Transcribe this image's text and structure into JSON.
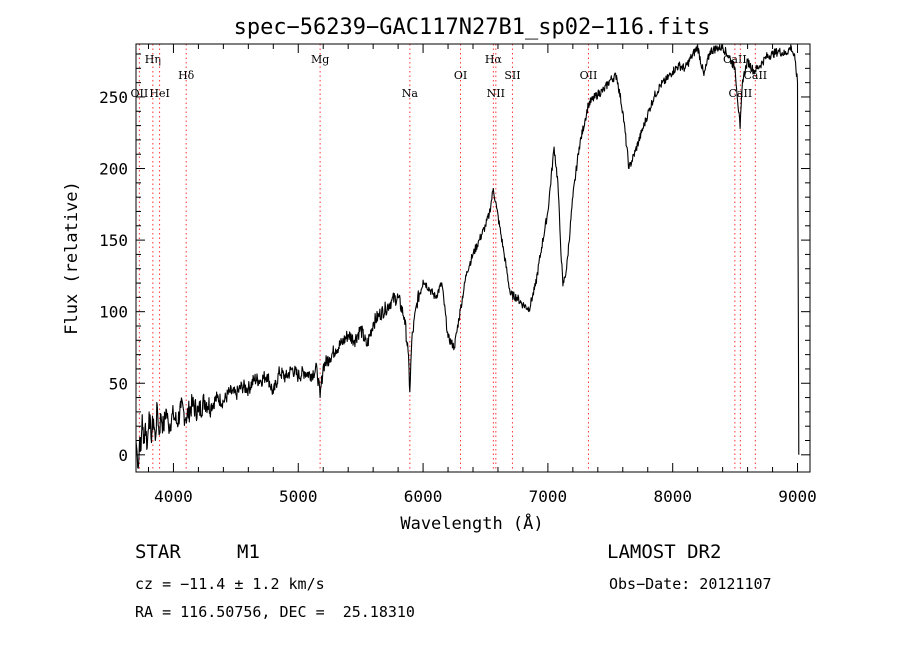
{
  "chart_data": {
    "type": "line",
    "title": "spec−56239−GAC117N27B1_sp02−116.fits",
    "xlabel": "Wavelength (Å)",
    "ylabel": "Flux (relative)",
    "xlim": [
      3700,
      9100
    ],
    "ylim": [
      -12,
      287
    ],
    "x_ticks": [
      4000,
      5000,
      6000,
      7000,
      8000,
      9000
    ],
    "y_ticks": [
      0,
      50,
      100,
      150,
      200,
      250
    ],
    "grid": false,
    "legend": "none",
    "line_color": "#000000",
    "marker_color": "#ff3333",
    "spectral_lines": [
      {
        "label": "Hη",
        "wavelength": 3835,
        "row": 1
      },
      {
        "label": "OII",
        "wavelength": 3727,
        "row": 3
      },
      {
        "label": "HeI",
        "wavelength": 3889,
        "row": 3
      },
      {
        "label": "Hδ",
        "wavelength": 4102,
        "row": 2
      },
      {
        "label": "Mg",
        "wavelength": 5175,
        "row": 1
      },
      {
        "label": "Na",
        "wavelength": 5894,
        "row": 3
      },
      {
        "label": "OI",
        "wavelength": 6300,
        "row": 2
      },
      {
        "label": "Hα",
        "wavelength": 6563,
        "row": 1
      },
      {
        "label": "NII",
        "wavelength": 6583,
        "row": 3
      },
      {
        "label": "SII",
        "wavelength": 6716,
        "row": 2
      },
      {
        "label": "OII",
        "wavelength": 7325,
        "row": 2
      },
      {
        "label": "CaII",
        "wavelength": 8498,
        "row": 1
      },
      {
        "label": "CaII",
        "wavelength": 8542,
        "row": 3
      },
      {
        "label": "CaII",
        "wavelength": 8662,
        "row": 2
      }
    ],
    "series": [
      {
        "values": [
          [
            3700,
            10
          ],
          [
            3710,
            0
          ],
          [
            3720,
            -8
          ],
          [
            3730,
            12
          ],
          [
            3740,
            3
          ],
          [
            3750,
            28
          ],
          [
            3760,
            8
          ],
          [
            3775,
            22
          ],
          [
            3790,
            5
          ],
          [
            3805,
            30
          ],
          [
            3820,
            12
          ],
          [
            3840,
            25
          ],
          [
            3855,
            10
          ],
          [
            3870,
            35
          ],
          [
            3885,
            14
          ],
          [
            3900,
            28
          ],
          [
            3920,
            18
          ],
          [
            3940,
            32
          ],
          [
            3960,
            20
          ],
          [
            4000,
            28
          ],
          [
            4030,
            22
          ],
          [
            4060,
            33
          ],
          [
            4100,
            26
          ],
          [
            4150,
            35
          ],
          [
            4200,
            30
          ],
          [
            4250,
            38
          ],
          [
            4300,
            34
          ],
          [
            4350,
            40
          ],
          [
            4400,
            37
          ],
          [
            4450,
            44
          ],
          [
            4500,
            42
          ],
          [
            4550,
            48
          ],
          [
            4600,
            46
          ],
          [
            4650,
            53
          ],
          [
            4700,
            52
          ],
          [
            4750,
            56
          ],
          [
            4800,
            43
          ],
          [
            4850,
            58
          ],
          [
            4900,
            54
          ],
          [
            4950,
            60
          ],
          [
            5000,
            55
          ],
          [
            5050,
            58
          ],
          [
            5100,
            56
          ],
          [
            5150,
            60
          ],
          [
            5175,
            40
          ],
          [
            5200,
            62
          ],
          [
            5250,
            68
          ],
          [
            5300,
            74
          ],
          [
            5350,
            78
          ],
          [
            5400,
            84
          ],
          [
            5450,
            80
          ],
          [
            5500,
            88
          ],
          [
            5550,
            76
          ],
          [
            5600,
            92
          ],
          [
            5650,
            98
          ],
          [
            5700,
            102
          ],
          [
            5750,
            108
          ],
          [
            5800,
            110
          ],
          [
            5850,
            96
          ],
          [
            5880,
            72
          ],
          [
            5894,
            44
          ],
          [
            5910,
            80
          ],
          [
            5950,
            106
          ],
          [
            6000,
            122
          ],
          [
            6050,
            116
          ],
          [
            6100,
            110
          ],
          [
            6150,
            120
          ],
          [
            6200,
            82
          ],
          [
            6250,
            75
          ],
          [
            6300,
            102
          ],
          [
            6350,
            128
          ],
          [
            6400,
            140
          ],
          [
            6450,
            150
          ],
          [
            6500,
            160
          ],
          [
            6530,
            168
          ],
          [
            6563,
            186
          ],
          [
            6590,
            172
          ],
          [
            6650,
            140
          ],
          [
            6700,
            112
          ],
          [
            6750,
            110
          ],
          [
            6800,
            105
          ],
          [
            6850,
            102
          ],
          [
            6900,
            118
          ],
          [
            6950,
            145
          ],
          [
            7000,
            170
          ],
          [
            7050,
            215
          ],
          [
            7080,
            190
          ],
          [
            7100,
            150
          ],
          [
            7120,
            118
          ],
          [
            7150,
            130
          ],
          [
            7200,
            180
          ],
          [
            7250,
            215
          ],
          [
            7300,
            235
          ],
          [
            7325,
            245
          ],
          [
            7400,
            252
          ],
          [
            7450,
            255
          ],
          [
            7500,
            262
          ],
          [
            7550,
            265
          ],
          [
            7600,
            240
          ],
          [
            7650,
            200
          ],
          [
            7700,
            212
          ],
          [
            7750,
            225
          ],
          [
            7800,
            238
          ],
          [
            7850,
            250
          ],
          [
            7900,
            258
          ],
          [
            7950,
            262
          ],
          [
            8000,
            268
          ],
          [
            8050,
            272
          ],
          [
            8100,
            270
          ],
          [
            8150,
            278
          ],
          [
            8200,
            285
          ],
          [
            8250,
            265
          ],
          [
            8300,
            282
          ],
          [
            8350,
            284
          ],
          [
            8400,
            285
          ],
          [
            8450,
            278
          ],
          [
            8500,
            270
          ],
          [
            8540,
            228
          ],
          [
            8560,
            262
          ],
          [
            8600,
            275
          ],
          [
            8650,
            268
          ],
          [
            8700,
            272
          ],
          [
            8750,
            278
          ],
          [
            8800,
            280
          ],
          [
            8850,
            282
          ],
          [
            8900,
            280
          ],
          [
            8950,
            285
          ],
          [
            8980,
            276
          ],
          [
            9000,
            260
          ],
          [
            9010,
            0
          ]
        ]
      }
    ]
  },
  "info": {
    "object_class": "STAR",
    "subclass": "M1",
    "survey": "LAMOST DR2",
    "redshift": "cz = −11.4 ± 1.2 km/s",
    "obs_date": "Obs−Date: 20121107",
    "coords": "RA = 116.50756, DEC =  25.18310"
  }
}
